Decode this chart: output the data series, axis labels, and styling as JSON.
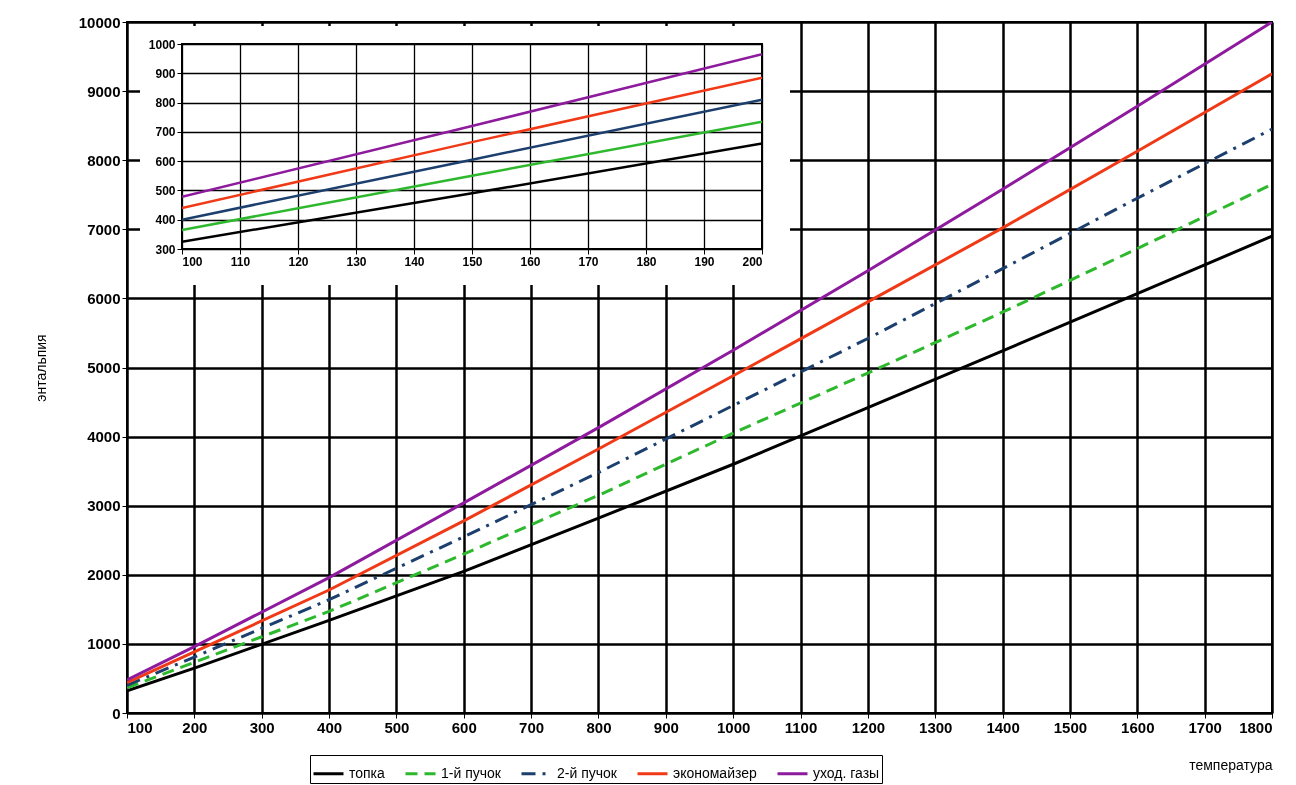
{
  "chart_data": [
    {
      "type": "line",
      "xlabel": "температура",
      "ylabel": "энтальпия",
      "x": [
        100,
        200,
        400,
        600,
        800,
        1000,
        1200,
        1400,
        1600,
        1800
      ],
      "xlim": [
        100,
        1800
      ],
      "xticks": [
        100,
        200,
        300,
        400,
        500,
        600,
        700,
        800,
        900,
        1000,
        1100,
        1200,
        1300,
        1400,
        1500,
        1600,
        1700,
        1800
      ],
      "ylim": [
        0,
        10000
      ],
      "yticks": [
        0,
        1000,
        2000,
        3000,
        4000,
        5000,
        6000,
        7000,
        8000,
        9000,
        10000
      ],
      "grid": true,
      "legend": "bottom",
      "series": [
        {
          "name": "топка",
          "color": "#000000",
          "line_style": "solid",
          "values": [
            320,
            650,
            1340,
            2050,
            2820,
            3600,
            4420,
            5240,
            6070,
            6900
          ]
        },
        {
          "name": "1-й пучок",
          "color": "#2db82d",
          "line_style": "dashed",
          "values": [
            365,
            735,
            1470,
            2300,
            3150,
            4050,
            4920,
            5800,
            6720,
            7650
          ]
        },
        {
          "name": "2-й пучок",
          "color": "#1c3f6e",
          "line_style": "dashdot",
          "values": [
            400,
            810,
            1640,
            2550,
            3480,
            4450,
            5420,
            6430,
            7450,
            8450
          ]
        },
        {
          "name": "экономайзер",
          "color": "#f03a17",
          "line_style": "solid",
          "values": [
            440,
            885,
            1780,
            2780,
            3820,
            4880,
            5950,
            7020,
            8130,
            9250
          ]
        },
        {
          "name": "уход. газы",
          "color": "#8e1a9e",
          "line_style": "solid",
          "values": [
            480,
            960,
            1960,
            3040,
            4130,
            5250,
            6400,
            7580,
            8780,
            10000
          ]
        }
      ]
    },
    {
      "type": "line",
      "x": [
        100,
        150,
        200
      ],
      "xlim": [
        100,
        200
      ],
      "xticks": [
        100,
        110,
        120,
        130,
        140,
        150,
        160,
        170,
        180,
        190,
        200
      ],
      "ylim": [
        300,
        1000
      ],
      "yticks": [
        300,
        400,
        500,
        600,
        700,
        800,
        900,
        1000
      ],
      "grid": true,
      "series": [
        {
          "color": "#000000",
          "values": [
            325,
            490,
            660
          ]
        },
        {
          "color": "#2db82d",
          "values": [
            365,
            550,
            735
          ]
        },
        {
          "color": "#1c3f6e",
          "values": [
            400,
            605,
            810
          ]
        },
        {
          "color": "#f03a17",
          "values": [
            440,
            665,
            885
          ]
        },
        {
          "color": "#8e1a9e",
          "values": [
            478,
            720,
            965
          ]
        }
      ]
    }
  ]
}
